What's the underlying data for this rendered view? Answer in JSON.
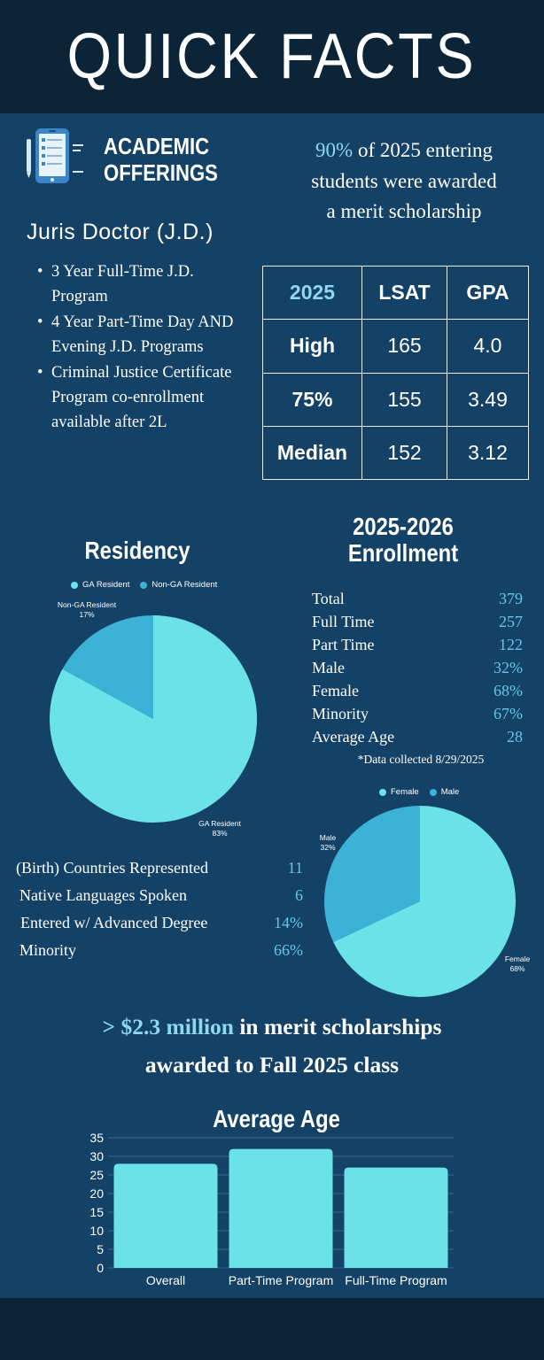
{
  "header": {
    "title": "QUICK FACTS"
  },
  "academic": {
    "heading_line1": "ACADEMIC",
    "heading_line2": "OFFERINGS",
    "degree": "Juris Doctor (J.D.)",
    "programs": [
      "3 Year Full-Time J.D. Program",
      "4 Year Part-Time Day AND Evening J.D. Programs",
      "Criminal Justice Certificate Program co-enrollment available after 2L"
    ]
  },
  "scholarship": {
    "percent": "90%",
    "line1_rest": " of 2025 entering",
    "line2": "students were awarded",
    "line3": "a merit scholarship"
  },
  "stats_table": {
    "headers": [
      "2025",
      "LSAT",
      "GPA"
    ],
    "rows": [
      [
        "High",
        "165",
        "4.0"
      ],
      [
        "75%",
        "155",
        "3.49"
      ],
      [
        "Median",
        "152",
        "3.12"
      ]
    ]
  },
  "enrollment": {
    "title_line1": "2025-2026",
    "title_line2": "Enrollment",
    "rows": [
      {
        "label": "Total",
        "value": "379"
      },
      {
        "label": "Full Time",
        "value": "257"
      },
      {
        "label": "Part Time",
        "value": "122"
      },
      {
        "label": "Male",
        "value": "32%"
      },
      {
        "label": "Female",
        "value": "68%"
      },
      {
        "label": "Minority",
        "value": "67%"
      },
      {
        "label": "Average Age",
        "value": "28"
      }
    ],
    "note": "*Data collected 8/29/2025"
  },
  "facts": [
    {
      "label": "(Birth) Countries Represented",
      "value": "11"
    },
    {
      "label": "Native Languages Spoken",
      "value": "6"
    },
    {
      "label": "Entered w/ Advanced Degree",
      "value": "14%"
    },
    {
      "label": "Minority",
      "value": "66%"
    }
  ],
  "merit": {
    "amount": "> $2.3 million",
    "line1_rest": " in merit scholarships",
    "line2": "awarded to Fall 2025 class"
  },
  "colors": {
    "background": "#144166",
    "dark_band": "#0b2438",
    "pie_primary": "#6ae2e8",
    "pie_secondary": "#3cb3d6",
    "accent_text": "#8fd8f0",
    "bar": "#6ae2e8"
  },
  "chart_data": [
    {
      "type": "pie",
      "title": "Residency",
      "legend_position": "top",
      "slices": [
        {
          "name": "GA Resident",
          "label": "GA Resident",
          "percent_label": "83%",
          "value": 83,
          "color": "#6ae2e8"
        },
        {
          "name": "Non-GA Resident",
          "label": "Non-GA Resident",
          "percent_label": "17%",
          "value": 17,
          "color": "#3cb3d6"
        }
      ]
    },
    {
      "type": "pie",
      "title": "",
      "legend_position": "top",
      "slices": [
        {
          "name": "Female",
          "label": "Female",
          "percent_label": "68%",
          "value": 68,
          "color": "#6ae2e8"
        },
        {
          "name": "Male",
          "label": "Male",
          "percent_label": "32%",
          "value": 32,
          "color": "#3cb3d6"
        }
      ]
    },
    {
      "type": "bar",
      "title": "Average Age",
      "categories": [
        "Overall",
        "Part-Time Program",
        "Full-Time Program"
      ],
      "values": [
        28,
        32,
        27
      ],
      "ylim": [
        0,
        35
      ],
      "yticks": [
        0,
        5,
        10,
        15,
        20,
        25,
        30,
        35
      ],
      "grid": true,
      "xlabel": "",
      "ylabel": ""
    }
  ]
}
